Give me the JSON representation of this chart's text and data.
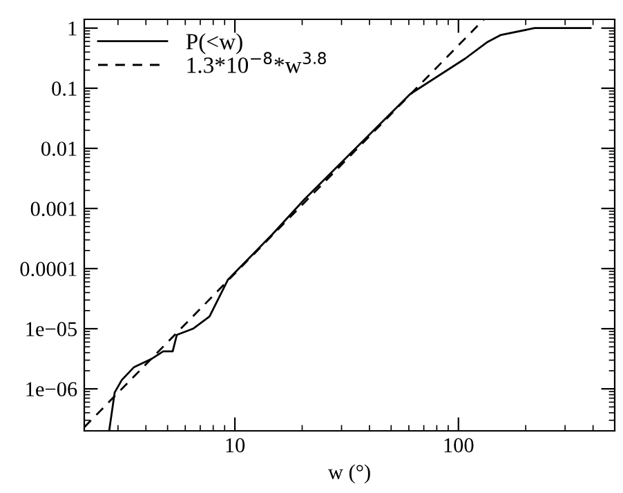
{
  "chart_data": {
    "type": "line",
    "xlabel": "w (°)",
    "log": "xy",
    "xlim": [
      2.12,
      500
    ],
    "ylim": [
      2e-07,
      1.4
    ],
    "xticks": [
      10,
      100
    ],
    "yticks": [
      {
        "value": 1,
        "label": "1"
      },
      {
        "value": 0.1,
        "label": "0.1"
      },
      {
        "value": 0.01,
        "label": "0.01"
      },
      {
        "value": 0.001,
        "label": "0.001"
      },
      {
        "value": 0.0001,
        "label": "0.0001"
      },
      {
        "value": 1e-05,
        "label": "1e−05"
      },
      {
        "value": 1e-06,
        "label": "1e−06"
      }
    ],
    "legend": "top left",
    "grid": false,
    "series": [
      {
        "name": "P(<w)",
        "color": "#000000",
        "line_style": "solid",
        "x": [
          2.74,
          2.9,
          3.12,
          3.54,
          4.27,
          4.78,
          5.27,
          5.5,
          6.5,
          7.7,
          9.3,
          14.7,
          20.4,
          60.8,
          107,
          135,
          155,
          219,
          390
        ],
        "values": [
          2e-07,
          8.7e-07,
          1.4e-06,
          2.3e-06,
          3.2e-06,
          4.2e-06,
          4.2e-06,
          7.9e-06,
          1e-05,
          1.6e-05,
          6.5e-05,
          0.00037,
          0.0014,
          0.08,
          0.31,
          0.59,
          0.77,
          1,
          1
        ]
      },
      {
        "name": "1.3*10$^{−8}$*w$^{3.8}$",
        "color": "#000000",
        "line_style": "dashed",
        "x": [
          2.12,
          130
        ],
        "values": [
          2.3e-07,
          1.4
        ]
      }
    ]
  }
}
